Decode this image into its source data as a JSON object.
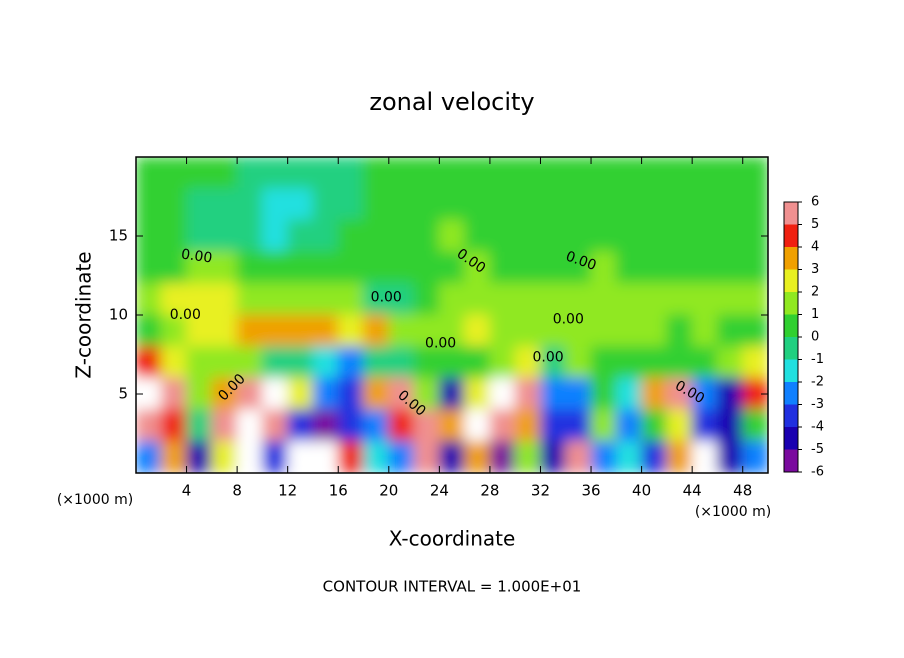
{
  "chart_data": {
    "type": "heatmap",
    "title": "zonal velocity",
    "x_label": "X-coordinate",
    "y_label": "Z-coordinate",
    "x_unit_label": "(×1000 m)",
    "y_unit_label": "(×1000 m)",
    "footer": "CONTOUR INTERVAL = 1.000E+01",
    "xlim": [
      0,
      50
    ],
    "ylim": [
      0,
      20
    ],
    "xticks": [
      4,
      8,
      12,
      16,
      20,
      24,
      28,
      32,
      36,
      40,
      44,
      48
    ],
    "yticks": [
      5,
      10,
      15
    ],
    "x": [
      1,
      3,
      5,
      7,
      9,
      11,
      13,
      15,
      17,
      19,
      21,
      23,
      25,
      27,
      29,
      31,
      33,
      35,
      37,
      39,
      41,
      43,
      45,
      47,
      49
    ],
    "y": [
      19,
      17,
      15,
      13,
      11,
      9,
      7,
      5,
      3,
      1
    ],
    "z": [
      [
        0,
        0,
        0,
        0,
        -1,
        -1,
        -1,
        -1,
        -1,
        0,
        0,
        0,
        0,
        0,
        0,
        0,
        0,
        0,
        0,
        0,
        0,
        0,
        0,
        0,
        0
      ],
      [
        0,
        0,
        -1,
        -1,
        -1,
        -2,
        -2,
        -1,
        -1,
        0,
        0,
        0,
        0,
        0,
        0,
        0,
        0,
        0,
        0,
        0,
        0,
        0,
        0,
        0,
        0
      ],
      [
        0,
        0,
        -1,
        -1,
        -1,
        -2,
        -1,
        -1,
        0,
        0,
        0,
        0,
        1,
        0,
        0,
        0,
        0,
        0,
        0,
        0,
        0,
        0,
        0,
        0,
        0
      ],
      [
        0,
        0,
        1,
        1,
        0,
        0,
        0,
        0,
        0,
        0,
        0,
        0,
        0,
        1,
        0,
        0,
        0,
        0,
        1,
        0,
        0,
        0,
        0,
        0,
        0
      ],
      [
        1,
        2,
        2,
        2,
        1,
        1,
        1,
        1,
        1,
        -1,
        -1,
        0,
        1,
        1,
        1,
        1,
        1,
        1,
        1,
        1,
        1,
        1,
        1,
        1,
        1
      ],
      [
        0,
        1,
        2,
        2,
        3,
        3,
        3,
        3,
        2,
        3,
        1,
        1,
        1,
        2,
        1,
        1,
        1,
        1,
        1,
        1,
        1,
        0,
        1,
        0,
        0
      ],
      [
        4,
        2,
        1,
        1,
        1,
        -1,
        -1,
        -2,
        -3,
        -1,
        -1,
        0,
        0,
        0,
        1,
        2,
        -1,
        1,
        0,
        0,
        0,
        0,
        0,
        1,
        2
      ],
      [
        7,
        5,
        1,
        3,
        5,
        7,
        2,
        -3,
        -4,
        3,
        5,
        1,
        -5,
        2,
        7,
        5,
        -3,
        -3,
        0,
        -2,
        3,
        5,
        -3,
        -5,
        4
      ],
      [
        5,
        4,
        -1,
        5,
        7,
        5,
        -4,
        -6,
        -4,
        -3,
        4,
        5,
        3,
        6,
        5,
        3,
        -4,
        -4,
        1,
        -3,
        0,
        2,
        -4,
        -5,
        0
      ],
      [
        -3,
        3,
        -5,
        2,
        7,
        -4,
        7,
        8,
        4,
        -2,
        -3,
        5,
        -5,
        3,
        -6,
        1,
        -5,
        5,
        -3,
        -2,
        -4,
        3,
        7,
        -5,
        -3
      ]
    ],
    "colorbar_ticks": [
      -6,
      -5,
      -4,
      -3,
      -2,
      -1,
      0,
      1,
      2,
      3,
      4,
      5,
      6
    ],
    "colors": [
      "#7a0a9e",
      "#1a00b0",
      "#2030e0",
      "#1080ff",
      "#20e0e0",
      "#20d080",
      "#30d030",
      "#90e820",
      "#e8f020",
      "#f0a000",
      "#f02010",
      "#f09090"
    ],
    "over_color": "#ffffff",
    "under_color": "#6a0080",
    "annotations": [
      {
        "text": "0.00",
        "x": 4.8,
        "y": 13.7,
        "rotate": 8
      },
      {
        "text": "0.00",
        "x": 3.9,
        "y": 10,
        "rotate": 0
      },
      {
        "text": "0.00",
        "x": 7.6,
        "y": 5.4,
        "rotate": -45
      },
      {
        "text": "0.00",
        "x": 19.8,
        "y": 11.1,
        "rotate": 0
      },
      {
        "text": "0.00",
        "x": 24.1,
        "y": 8.2,
        "rotate": 0
      },
      {
        "text": "0.00",
        "x": 26.5,
        "y": 13.4,
        "rotate": 35
      },
      {
        "text": "0.00",
        "x": 34.2,
        "y": 9.7,
        "rotate": 0
      },
      {
        "text": "0.00",
        "x": 35.2,
        "y": 13.4,
        "rotate": 20
      },
      {
        "text": "0.00",
        "x": 32.6,
        "y": 7.3,
        "rotate": 0
      },
      {
        "text": "0.00",
        "x": 21.8,
        "y": 4.4,
        "rotate": 40
      },
      {
        "text": "0.00",
        "x": 43.8,
        "y": 5.1,
        "rotate": 30
      }
    ]
  }
}
